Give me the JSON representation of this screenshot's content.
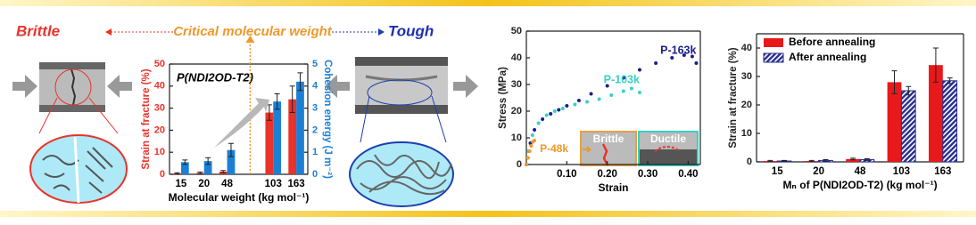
{
  "labels": {
    "brittle": "Brittle",
    "critical": "Critical molecular weight",
    "tough": "Tough"
  },
  "chart_data": [
    {
      "type": "bar",
      "title": "P(NDI2OD-T2)",
      "categories": [
        "15",
        "20",
        "48",
        null,
        "103",
        "163"
      ],
      "x_label": "Molecular weight (kg mol⁻¹)",
      "y_label": "Strain at fracture (%)",
      "y2_label": "Cohesion energy (J m⁻²)",
      "ylim": [
        0,
        50
      ],
      "yticks": [
        0,
        10,
        20,
        30,
        40,
        50
      ],
      "y2lim": [
        0,
        5
      ],
      "y2ticks": [
        0,
        1,
        2,
        3,
        4,
        5
      ],
      "series": [
        {
          "color": "#e8332b",
          "values": [
            0.4,
            0.6,
            1.2,
            null,
            28,
            34
          ],
          "errors": [
            0.3,
            0.4,
            0.5,
            null,
            3.5,
            6
          ]
        },
        {
          "color": "#1c7fd6",
          "axis": "y2",
          "values": [
            0.55,
            0.6,
            1.1,
            null,
            3.3,
            4.2
          ],
          "errors": [
            0.1,
            0.15,
            0.3,
            null,
            0.35,
            0.4
          ]
        }
      ]
    },
    {
      "type": "scatter",
      "x_label": "Strain",
      "y_label": "Stress (MPa)",
      "xlim": [
        0,
        0.43
      ],
      "xticks": [
        {
          "value": 0.1,
          "label": "0.10"
        },
        {
          "value": 0.2,
          "label": "0.20"
        },
        {
          "value": 0.3,
          "label": "0.30"
        },
        {
          "value": 0.4,
          "label": "0.40"
        }
      ],
      "ylim": [
        0,
        50
      ],
      "yticks": [
        0,
        10,
        20,
        30,
        40,
        50
      ],
      "annotations": [
        "Brittle",
        "Ductile"
      ],
      "series": [
        {
          "name": "P-163k",
          "color": "#1b1f8a",
          "x": [
            0,
            0.01,
            0.02,
            0.04,
            0.06,
            0.08,
            0.1,
            0.13,
            0.16,
            0.2,
            0.24,
            0.28,
            0.32,
            0.36,
            0.39,
            0.41,
            0.42
          ],
          "values": [
            0,
            8,
            13,
            17,
            19,
            20.5,
            22,
            24,
            26.5,
            29.5,
            32.5,
            35.5,
            38,
            40,
            41,
            40.5,
            38
          ]
        },
        {
          "name": "P-103k",
          "color": "#35d3c3",
          "x": [
            0.005,
            0.015,
            0.03,
            0.05,
            0.07,
            0.09,
            0.12,
            0.15,
            0.18,
            0.21,
            0.24,
            0.26,
            0.28
          ],
          "values": [
            5,
            11,
            15.5,
            18.5,
            20,
            21,
            22.5,
            23.5,
            24.5,
            26,
            27.5,
            28.5,
            27
          ]
        },
        {
          "name": "P-48k",
          "color": "#f0982a",
          "x": [
            0,
            0.004,
            0.008,
            0.012,
            0.016,
            0.02
          ],
          "values": [
            0,
            2.5,
            5,
            7,
            8.5,
            9
          ]
        }
      ]
    },
    {
      "type": "bar",
      "x_label": "Mₙ of P(NDI2OD-T2) (kg mol⁻¹)",
      "y_label": "Strain at fracture (%)",
      "categories": [
        "15",
        "20",
        "48",
        "103",
        "163"
      ],
      "ylim": [
        0,
        45
      ],
      "yticks": [
        0,
        10,
        20,
        30,
        40
      ],
      "legend": "top-left",
      "series": [
        {
          "name": "Before annealing",
          "color": "#e8191a",
          "values": [
            0.3,
            0.3,
            1,
            28,
            34
          ],
          "errors": [
            0.2,
            0.2,
            0.3,
            4,
            6
          ]
        },
        {
          "name": "After annealing",
          "color": "#2a2f8f",
          "pattern": "hatch",
          "values": [
            0.3,
            0.5,
            0.8,
            25,
            28.5
          ],
          "errors": [
            0.2,
            0.3,
            0.3,
            1.5,
            1
          ]
        }
      ]
    }
  ]
}
